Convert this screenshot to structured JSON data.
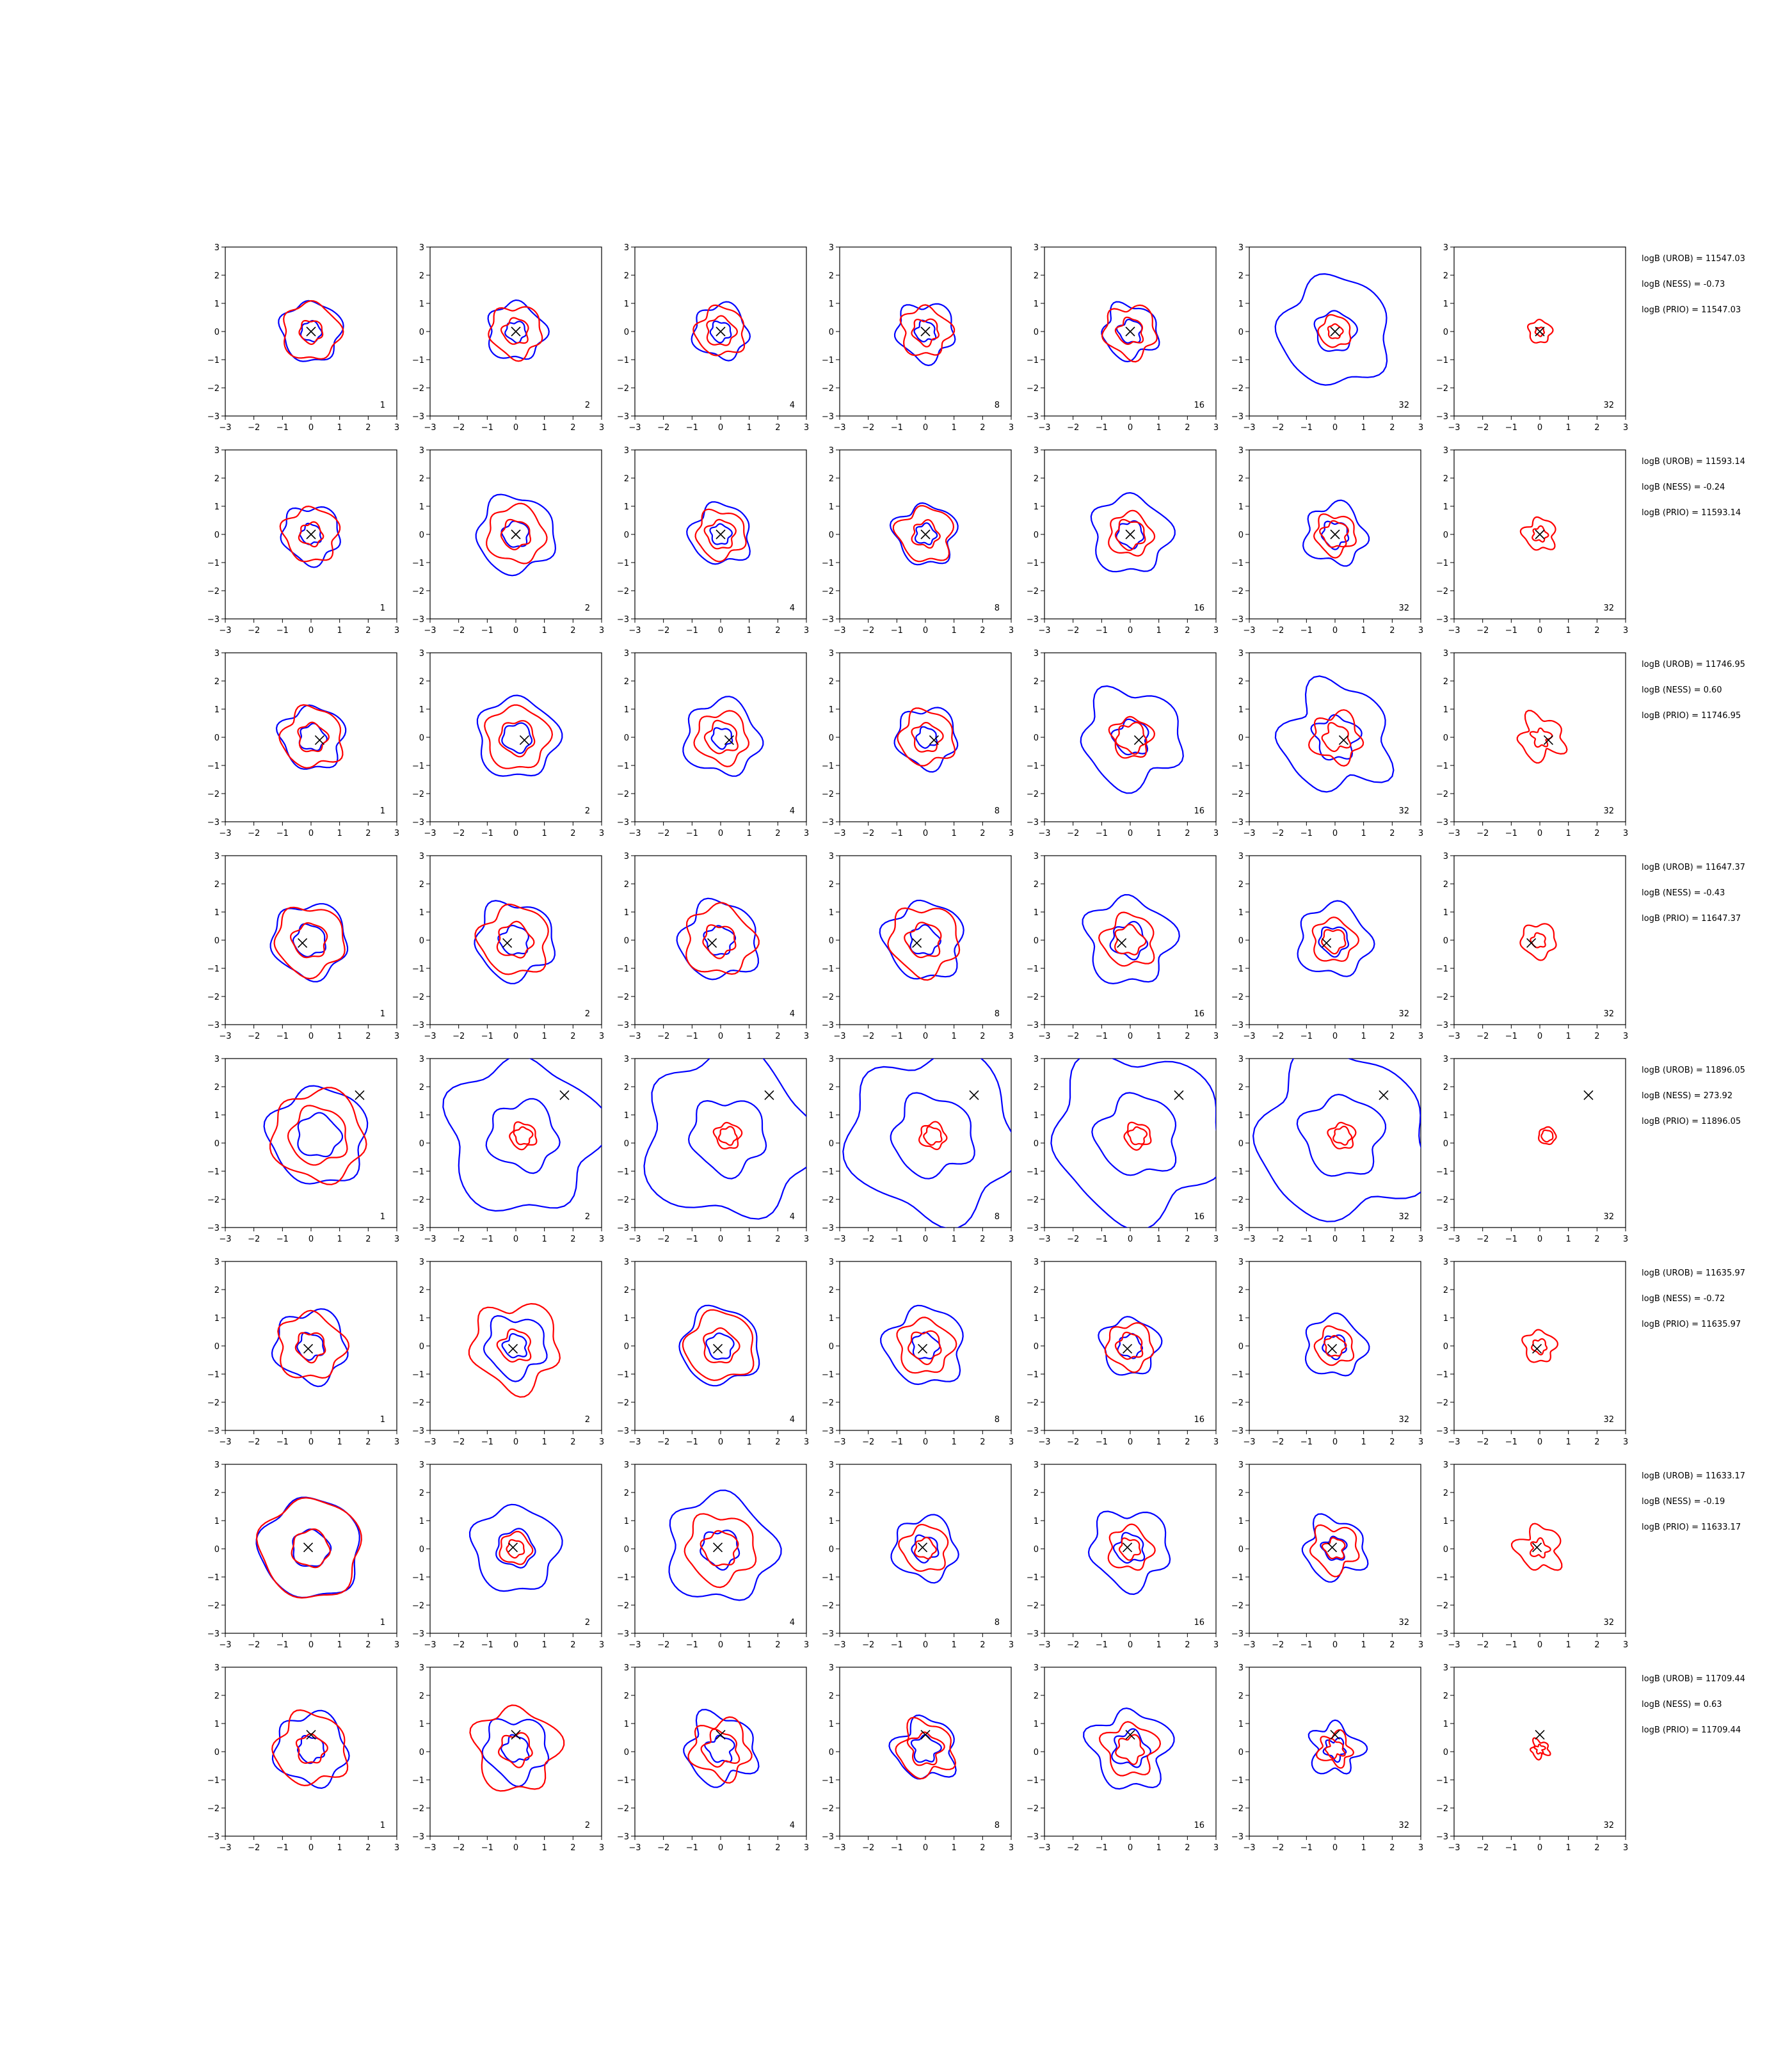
{
  "chart_data": {
    "type": "contour-grid",
    "title": "",
    "xlabel": "",
    "ylabel": "",
    "xlim": [
      -3,
      3
    ],
    "ylim": [
      -3,
      3
    ],
    "ticks": [
      "−3",
      "−2",
      "−1",
      "0",
      "1",
      "2",
      "3"
    ],
    "tick_values": [
      -3,
      -2,
      -1,
      0,
      1,
      2,
      3
    ],
    "grid": false,
    "colors": {
      "blue_contours": "#0000ff",
      "red_contours": "#ff0000",
      "marker": "#000000",
      "axes": "#000000"
    },
    "columns": [
      "1",
      "2",
      "4",
      "8",
      "16",
      "32",
      "32"
    ],
    "rows": [
      {
        "marker": [
          0.0,
          0.0
        ],
        "annotations": [
          "logB (UROB) = 11547.03",
          "logB (NESS) = -0.73",
          "logB (PRIO) = 11547.03"
        ],
        "panels": [
          {
            "blue": [
              1.05,
              0.35
            ],
            "red": [
              1.0,
              0.4
            ],
            "wobble": 0.08
          },
          {
            "blue": [
              1.0,
              0.35
            ],
            "red": [
              0.9,
              0.45
            ],
            "wobble": 0.1
          },
          {
            "blue": [
              0.95,
              0.35
            ],
            "red": [
              0.85,
              0.5
            ],
            "wobble": 0.1
          },
          {
            "blue": [
              1.0,
              0.35
            ],
            "red": [
              0.85,
              0.45
            ],
            "wobble": 0.12
          },
          {
            "blue": [
              0.95,
              0.4
            ],
            "red": [
              0.9,
              0.45
            ],
            "wobble": 0.12
          },
          {
            "blue": [
              1.9,
              0.7
            ],
            "red": [
              0.55,
              0.25
            ],
            "wobble": 0.08
          },
          {
            "blue": [],
            "red": [
              0.4,
              0.15
            ],
            "wobble": 0.1
          }
        ]
      },
      {
        "marker": [
          0.0,
          0.0
        ],
        "annotations": [
          "logB (UROB) = 11593.14",
          "logB (NESS) = -0.24",
          "logB (PRIO) = 11593.14"
        ],
        "panels": [
          {
            "blue": [
              1.0,
              0.35
            ],
            "red": [
              0.95,
              0.4
            ],
            "wobble": 0.1
          },
          {
            "blue": [
              1.35,
              0.45
            ],
            "red": [
              1.0,
              0.5
            ],
            "wobble": 0.08
          },
          {
            "blue": [
              1.05,
              0.35
            ],
            "red": [
              0.85,
              0.5
            ],
            "wobble": 0.1
          },
          {
            "blue": [
              1.05,
              0.35
            ],
            "red": [
              0.95,
              0.45
            ],
            "wobble": 0.12
          },
          {
            "blue": [
              1.35,
              0.45
            ],
            "red": [
              0.75,
              0.5
            ],
            "wobble": 0.1
          },
          {
            "blue": [
              1.05,
              0.45
            ],
            "red": [
              0.7,
              0.45
            ],
            "wobble": 0.12
          },
          {
            "blue": [],
            "red": [
              0.55,
              0.25
            ],
            "wobble": 0.15
          }
        ]
      },
      {
        "marker": [
          0.3,
          -0.1
        ],
        "annotations": [
          "logB (UROB) = 11746.95",
          "logB (NESS) = 0.60",
          "logB (PRIO) = 11746.95"
        ],
        "panels": [
          {
            "blue": [
              1.1,
              0.45
            ],
            "red": [
              1.05,
              0.5
            ],
            "wobble": 0.1
          },
          {
            "blue": [
              1.4,
              0.5
            ],
            "red": [
              1.1,
              0.6
            ],
            "wobble": 0.08
          },
          {
            "blue": [
              1.3,
              0.35
            ],
            "red": [
              0.9,
              0.55
            ],
            "wobble": 0.1
          },
          {
            "blue": [
              1.05,
              0.35
            ],
            "red": [
              0.95,
              0.5
            ],
            "wobble": 0.1
          },
          {
            "blue": [
              1.7,
              0.6
            ],
            "red": [
              0.7,
              0.5
            ],
            "wobble": 0.12
          },
          {
            "blue": [
              1.85,
              0.75
            ],
            "red": [
              0.85,
              0.45
            ],
            "wobble": 0.15
          },
          {
            "blue": [],
            "red": [
              0.75,
              0.3
            ],
            "wobble": 0.22
          }
        ]
      },
      {
        "marker": [
          -0.3,
          -0.1
        ],
        "annotations": [
          "logB (UROB) = 11647.37",
          "logB (NESS) = -0.43",
          "logB (PRIO) = 11647.37"
        ],
        "panels": [
          {
            "blue": [
              1.3,
              0.55
            ],
            "red": [
              1.2,
              0.6
            ],
            "wobble": 0.08
          },
          {
            "blue": [
              1.35,
              0.5
            ],
            "red": [
              1.2,
              0.6
            ],
            "wobble": 0.1
          },
          {
            "blue": [
              1.35,
              0.5
            ],
            "red": [
              1.2,
              0.55
            ],
            "wobble": 0.1
          },
          {
            "blue": [
              1.35,
              0.5
            ],
            "red": [
              1.2,
              0.6
            ],
            "wobble": 0.1
          },
          {
            "blue": [
              1.5,
              0.6
            ],
            "red": [
              0.9,
              0.5
            ],
            "wobble": 0.12
          },
          {
            "blue": [
              1.25,
              0.5
            ],
            "red": [
              0.75,
              0.4
            ],
            "wobble": 0.1
          },
          {
            "blue": [],
            "red": [
              0.6,
              0.25
            ],
            "wobble": 0.1
          }
        ]
      },
      {
        "marker": [
          1.7,
          1.7
        ],
        "annotations": [
          "logB (UROB) = 11896.05",
          "logB (NESS) = 273.92",
          "logB (PRIO) = 11896.05"
        ],
        "panels": [
          {
            "blue": [
              1.7,
              0.75
            ],
            "red": [
              1.6,
              1.0
            ],
            "wobble": 0.08
          },
          {
            "blue": [
              2.65,
              1.2
            ],
            "red": [
              0.45,
              0.3
            ],
            "wobble": 0.1
          },
          {
            "blue": [
              2.9,
              1.3
            ],
            "red": [
              0.45,
              0.3
            ],
            "wobble": 0.1
          },
          {
            "blue": [
              2.9,
              1.4
            ],
            "red": [
              0.45,
              0.3
            ],
            "wobble": 0.1
          },
          {
            "blue": [
              2.9,
              1.4
            ],
            "red": [
              0.45,
              0.3
            ],
            "wobble": 0.1
          },
          {
            "blue": [
              2.9,
              1.4
            ],
            "red": [
              0.45,
              0.3
            ],
            "wobble": 0.1
          },
          {
            "blue": [],
            "red": [
              0.3,
              0.2
            ],
            "wobble": 0.05
          }
        ]
      },
      {
        "marker": [
          -0.1,
          -0.1
        ],
        "annotations": [
          "logB (UROB) = 11635.97",
          "logB (NESS) = -0.72",
          "logB (PRIO) = 11635.97"
        ],
        "panels": [
          {
            "blue": [
              1.25,
              0.45
            ],
            "red": [
              1.15,
              0.5
            ],
            "wobble": 0.1
          },
          {
            "blue": [
              1.05,
              0.4
            ],
            "red": [
              1.5,
              0.55
            ],
            "wobble": 0.12
          },
          {
            "blue": [
              1.35,
              0.45
            ],
            "red": [
              1.2,
              0.6
            ],
            "wobble": 0.08
          },
          {
            "blue": [
              1.35,
              0.45
            ],
            "red": [
              0.95,
              0.55
            ],
            "wobble": 0.1
          },
          {
            "blue": [
              1.0,
              0.4
            ],
            "red": [
              0.8,
              0.45
            ],
            "wobble": 0.1
          },
          {
            "blue": [
              1.05,
              0.4
            ],
            "red": [
              0.65,
              0.35
            ],
            "wobble": 0.1
          },
          {
            "blue": [],
            "red": [
              0.55,
              0.25
            ],
            "wobble": 0.12
          }
        ]
      },
      {
        "marker": [
          -0.1,
          0.05
        ],
        "annotations": [
          "logB (UROB) = 11633.17",
          "logB (NESS) = -0.19",
          "logB (PRIO) = 11633.17"
        ],
        "panels": [
          {
            "blue": [
              1.75,
              0.65
            ],
            "red": [
              1.75,
              0.65
            ],
            "wobble": 0.06
          },
          {
            "blue": [
              1.5,
              0.65
            ],
            "red": [
              0.55,
              0.3
            ],
            "wobble": 0.08
          },
          {
            "blue": [
              1.85,
              0.65
            ],
            "red": [
              1.2,
              0.6
            ],
            "wobble": 0.1
          },
          {
            "blue": [
              1.1,
              0.45
            ],
            "red": [
              0.8,
              0.35
            ],
            "wobble": 0.1
          },
          {
            "blue": [
              1.35,
              0.5
            ],
            "red": [
              0.75,
              0.35
            ],
            "wobble": 0.12
          },
          {
            "blue": [
              1.05,
              0.4
            ],
            "red": [
              0.8,
              0.35
            ],
            "wobble": 0.15
          },
          {
            "blue": [],
            "red": [
              0.75,
              0.3
            ],
            "wobble": 0.2
          }
        ]
      },
      {
        "marker": [
          0.0,
          0.6
        ],
        "annotations": [
          "logB (UROB) = 11709.44",
          "logB (NESS) = 0.63",
          "logB (PRIO) = 11709.44"
        ],
        "panels": [
          {
            "blue": [
              1.25,
              0.45
            ],
            "red": [
              1.25,
              0.5
            ],
            "wobble": 0.1
          },
          {
            "blue": [
              1.1,
              0.45
            ],
            "red": [
              1.45,
              0.55
            ],
            "wobble": 0.12
          },
          {
            "blue": [
              1.2,
              0.45
            ],
            "red": [
              1.0,
              0.6
            ],
            "wobble": 0.15
          },
          {
            "blue": [
              1.05,
              0.45
            ],
            "red": [
              0.95,
              0.55
            ],
            "wobble": 0.15
          },
          {
            "blue": [
              1.35,
              0.6
            ],
            "red": [
              0.9,
              0.45
            ],
            "wobble": 0.15
          },
          {
            "blue": [
              0.85,
              0.35
            ],
            "red": [
              0.55,
              0.3
            ],
            "wobble": 0.2
          },
          {
            "blue": [],
            "red": [
              0.3,
              0.15
            ],
            "wobble": 0.25
          }
        ]
      }
    ]
  }
}
